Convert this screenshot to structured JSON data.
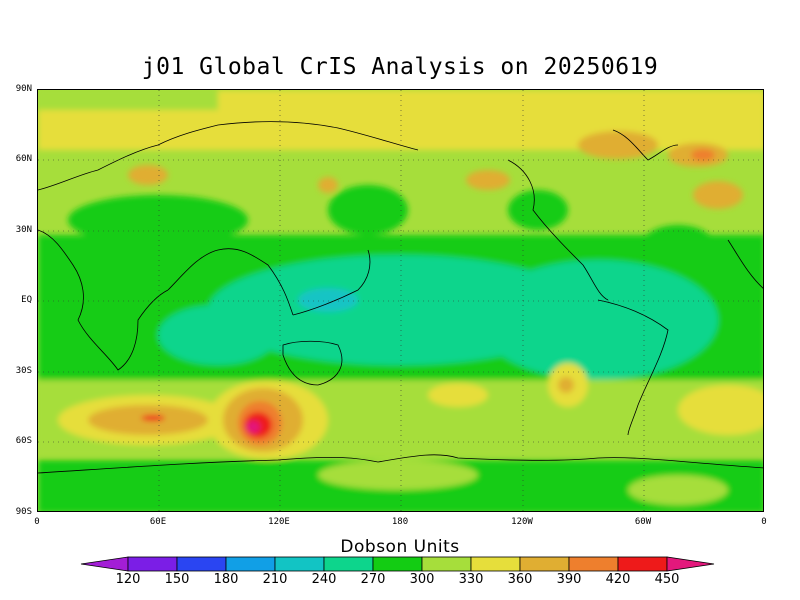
{
  "title": "j01 Global CrIS Analysis on 20250619",
  "y_axis_labels": [
    "90N",
    "60N",
    "30N",
    "EQ",
    "30S",
    "60S",
    "90S"
  ],
  "x_axis_labels": [
    "0",
    "60E",
    "120E",
    "180",
    "120W",
    "60W",
    "0"
  ],
  "colorbar": {
    "title": "Dobson Units",
    "tick_labels": [
      "120",
      "150",
      "180",
      "210",
      "240",
      "270",
      "300",
      "330",
      "360",
      "390",
      "420",
      "450"
    ],
    "colors": [
      "#a31ed6",
      "#7b1ee6",
      "#2a45f2",
      "#119fe6",
      "#12c4c4",
      "#0dd58c",
      "#13cc13",
      "#a6de3b",
      "#e6de3b",
      "#e0ae32",
      "#ee7f2d",
      "#ee1a1a",
      "#e3187c"
    ]
  },
  "map": {
    "projection": "cylindrical-equidistant",
    "longitude_range": [
      0,
      360
    ],
    "latitude_range": [
      -90,
      90
    ],
    "grid": "dotted"
  }
}
